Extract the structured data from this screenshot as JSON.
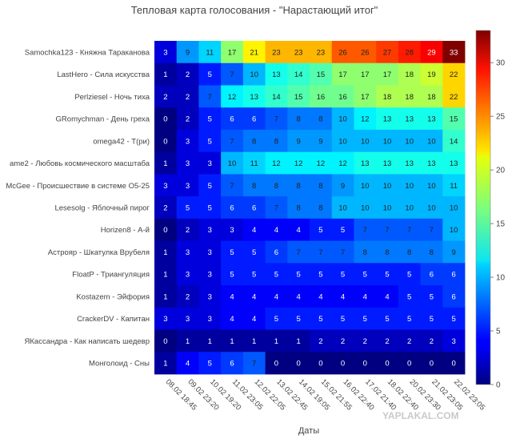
{
  "chart_data": {
    "type": "heatmap",
    "title": "Тепловая карта голосования - \"Нарастающий итог\"",
    "xlabel": "Даты",
    "ylabel": "",
    "x": [
      "08.02 18:45",
      "09.02 23:20",
      "10.02 19:20",
      "11.02 23:05",
      "12.02 22:05",
      "13.02 22:45",
      "14.02 19:05",
      "15.02 21:55",
      "16.02 22:40",
      "17.02 21:40",
      "18.02 22:40",
      "20.02 23:30",
      "21.02 23:05",
      "22.02 23:05"
    ],
    "y": [
      "Samochka123 - Княжна Тараканова",
      "LastHero - Сила искусства",
      "Perlziesel - Ночь тиха",
      "GRomychman - День греха",
      "omega42 - Т(ри)",
      "ame2 - Любовь космического масштаба",
      "McGee - Происшествие в системе O5-25",
      "Lesesolg - Яблочный пирог",
      "Horizen8 - А-й",
      "Астрояр - Шкатулка Врубеля",
      "FloatP - Триангуляция",
      "Kostazem - Эйфория",
      "CrackerDV - Капитан",
      "ЯКассандра - Как написать шедевр",
      "Монголоид - Сны"
    ],
    "z": [
      [
        3,
        9,
        11,
        17,
        21,
        23,
        23,
        23,
        26,
        26,
        27,
        28,
        29,
        33
      ],
      [
        1,
        2,
        5,
        7,
        10,
        13,
        14,
        15,
        17,
        17,
        17,
        18,
        19,
        22
      ],
      [
        2,
        2,
        7,
        12,
        13,
        14,
        15,
        16,
        16,
        17,
        18,
        18,
        18,
        22
      ],
      [
        0,
        2,
        5,
        6,
        6,
        7,
        8,
        8,
        10,
        12,
        13,
        13,
        13,
        15
      ],
      [
        0,
        3,
        5,
        7,
        8,
        8,
        9,
        9,
        10,
        10,
        10,
        10,
        10,
        14
      ],
      [
        1,
        3,
        3,
        10,
        11,
        12,
        12,
        12,
        12,
        13,
        13,
        13,
        13,
        13
      ],
      [
        3,
        3,
        5,
        7,
        8,
        8,
        8,
        8,
        9,
        10,
        10,
        10,
        10,
        11
      ],
      [
        2,
        5,
        5,
        6,
        6,
        7,
        8,
        8,
        10,
        10,
        10,
        10,
        10,
        10
      ],
      [
        0,
        2,
        3,
        3,
        4,
        4,
        4,
        5,
        5,
        7,
        7,
        7,
        7,
        10
      ],
      [
        1,
        3,
        3,
        5,
        5,
        6,
        7,
        7,
        7,
        8,
        8,
        8,
        8,
        9
      ],
      [
        1,
        3,
        3,
        5,
        5,
        5,
        5,
        5,
        5,
        5,
        5,
        5,
        6,
        6
      ],
      [
        1,
        2,
        3,
        4,
        4,
        4,
        4,
        4,
        4,
        4,
        4,
        5,
        5,
        6
      ],
      [
        3,
        3,
        3,
        4,
        4,
        5,
        5,
        5,
        5,
        5,
        5,
        5,
        5,
        5
      ],
      [
        0,
        1,
        1,
        1,
        1,
        1,
        1,
        2,
        2,
        2,
        2,
        2,
        2,
        3
      ],
      [
        1,
        4,
        5,
        6,
        7,
        0,
        0,
        0,
        0,
        0,
        0,
        0,
        0,
        0
      ]
    ],
    "zlim": [
      0,
      33
    ],
    "colorbar_ticks": [
      0,
      5,
      10,
      15,
      20,
      25,
      30
    ],
    "colorscale": "jet",
    "grid": false
  },
  "watermark": "YAPLAKAL.COM"
}
